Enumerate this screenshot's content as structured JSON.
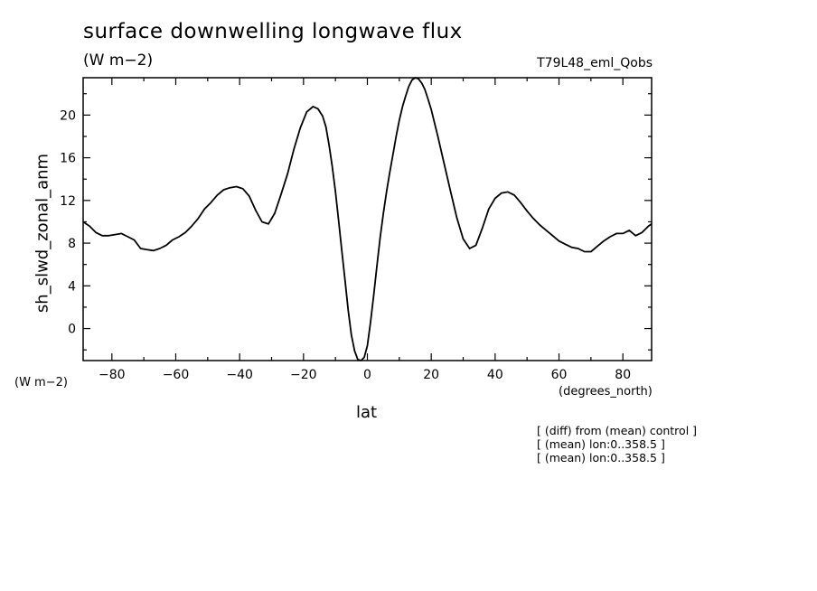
{
  "header": {
    "title": "surface downwelling longwave flux",
    "units": "(W m−2)",
    "run_label": "T79L48_eml_Qobs"
  },
  "axes": {
    "units_left": "(W m−2)",
    "x_units": "(degrees_north)"
  },
  "notes": [
    "[ (diff) from (mean) control ]",
    "[ (mean) lon:0..358.5 ]",
    "[ (mean) lon:0..358.5 ]"
  ],
  "colors": {
    "line": "#000000",
    "background": "#ffffff"
  },
  "chart_data": {
    "type": "line",
    "title": "surface downwelling longwave flux",
    "xlabel": "lat",
    "ylabel": "sh_slwd_zonal_anm",
    "xlim": [
      -89,
      89
    ],
    "ylim": [
      -3,
      23.5
    ],
    "xticks": [
      -80,
      -60,
      -40,
      -20,
      0,
      20,
      40,
      60,
      80
    ],
    "xtick_labels": [
      "−80",
      "−60",
      "−40",
      "−20",
      "0",
      "20",
      "40",
      "60",
      "80"
    ],
    "yticks": [
      0,
      4,
      8,
      12,
      16,
      20
    ],
    "ytick_labels": [
      "0",
      "4",
      "8",
      "12",
      "16",
      "20"
    ],
    "grid": false,
    "series": [
      {
        "x": [
          -89,
          -87,
          -85,
          -83,
          -81,
          -79,
          -77,
          -75,
          -73,
          -71,
          -69,
          -67,
          -65,
          -63,
          -61,
          -59,
          -57,
          -55,
          -53,
          -51,
          -49,
          -47,
          -45,
          -43,
          -41,
          -39,
          -37,
          -35,
          -33,
          -31,
          -29,
          -27,
          -25,
          -23,
          -21,
          -19,
          -17,
          -15.5,
          -14,
          -13,
          -12,
          -11,
          -10,
          -9,
          -8,
          -7,
          -6,
          -5,
          -4,
          -3,
          -2,
          -1,
          0,
          1,
          2,
          3,
          4,
          5,
          6,
          7,
          8,
          9,
          10,
          11,
          12,
          13,
          14,
          15,
          16,
          17,
          18,
          19,
          20,
          22,
          24,
          26,
          28,
          30,
          32,
          34,
          36,
          38,
          40,
          42,
          44,
          46,
          48,
          50,
          52,
          54,
          56,
          58,
          60,
          62,
          64,
          66,
          68,
          70,
          72,
          74,
          76,
          78,
          80,
          82,
          84,
          86,
          88,
          89
        ],
        "y": [
          10.0,
          9.6,
          9.0,
          8.7,
          8.7,
          8.8,
          8.9,
          8.6,
          8.3,
          7.5,
          7.4,
          7.3,
          7.5,
          7.8,
          8.3,
          8.6,
          9.0,
          9.6,
          10.3,
          11.2,
          11.8,
          12.5,
          13.0,
          13.2,
          13.3,
          13.1,
          12.4,
          11.1,
          10.0,
          9.8,
          10.8,
          12.6,
          14.5,
          16.8,
          18.8,
          20.3,
          20.8,
          20.6,
          19.9,
          18.9,
          17.2,
          15.2,
          12.8,
          10.1,
          7.3,
          4.5,
          1.7,
          -0.6,
          -2.1,
          -2.9,
          -3.0,
          -2.7,
          -1.6,
          0.6,
          3.2,
          5.9,
          8.5,
          10.8,
          12.8,
          14.6,
          16.3,
          18.0,
          19.5,
          20.8,
          21.8,
          22.7,
          23.3,
          23.5,
          23.4,
          23.0,
          22.4,
          21.5,
          20.5,
          18.1,
          15.5,
          12.9,
          10.4,
          8.4,
          7.5,
          7.8,
          9.4,
          11.2,
          12.2,
          12.7,
          12.8,
          12.5,
          11.8,
          11.0,
          10.3,
          9.7,
          9.2,
          8.7,
          8.2,
          7.9,
          7.6,
          7.5,
          7.2,
          7.2,
          7.7,
          8.2,
          8.6,
          8.9,
          8.9,
          9.2,
          8.7,
          9.0,
          9.6,
          9.8
        ]
      }
    ]
  }
}
